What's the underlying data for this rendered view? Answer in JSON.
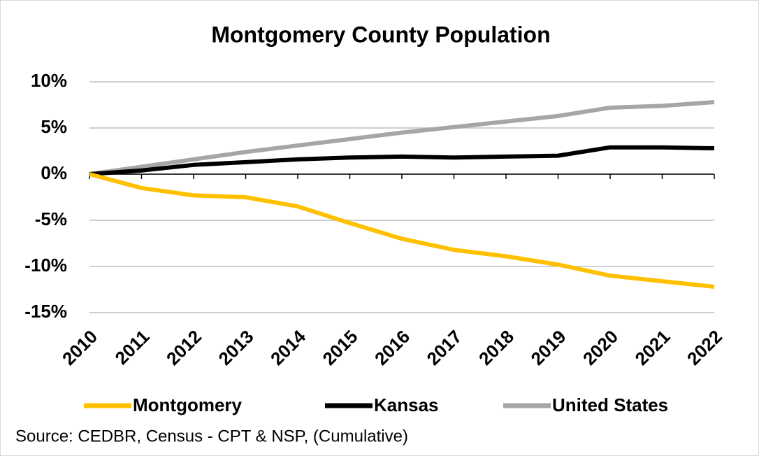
{
  "chart_data": {
    "type": "line",
    "title": "Montgomery County Population",
    "categories": [
      "2010",
      "2011",
      "2012",
      "2013",
      "2014",
      "2015",
      "2016",
      "2017",
      "2018",
      "2019",
      "2020",
      "2021",
      "2022"
    ],
    "series": [
      {
        "name": "Montgomery",
        "color": "#ffc000",
        "values": [
          0,
          -1.5,
          -2.3,
          -2.5,
          -3.5,
          -5.3,
          -7.0,
          -8.2,
          -8.9,
          -9.8,
          -11.0,
          -11.6,
          -12.2
        ]
      },
      {
        "name": "Kansas",
        "color": "#000000",
        "values": [
          0,
          0.4,
          1.0,
          1.3,
          1.6,
          1.8,
          1.9,
          1.8,
          1.9,
          2.0,
          2.9,
          2.9,
          2.8
        ]
      },
      {
        "name": "United States",
        "color": "#a6a6a6",
        "values": [
          0,
          0.8,
          1.6,
          2.4,
          3.1,
          3.8,
          4.5,
          5.1,
          5.7,
          6.3,
          7.2,
          7.4,
          7.8
        ]
      }
    ],
    "ylim": [
      -15,
      10
    ],
    "yticks": [
      {
        "value": -15,
        "label": "-15%"
      },
      {
        "value": -10,
        "label": "-10%"
      },
      {
        "value": -5,
        "label": "-5%"
      },
      {
        "value": 0,
        "label": "0%"
      },
      {
        "value": 5,
        "label": "5%"
      },
      {
        "value": 10,
        "label": "10%"
      }
    ],
    "grid": true,
    "source": "Source: CEDBR, Census - CPT & NSP, (Cumulative)"
  }
}
